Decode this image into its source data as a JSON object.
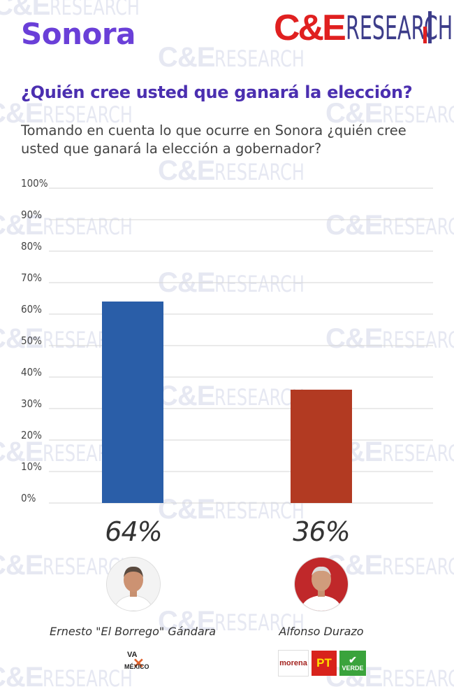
{
  "header": {
    "region": "Sonora",
    "logo_ce": "C&E",
    "logo_research": "RESEARCH",
    "watermark_text": "C&E RESEARCH"
  },
  "question": "¿Quién cree usted que ganará la elección?",
  "subtitle": "Tomando en cuenta lo que ocurre en Sonora ¿quién cree usted que ganará la elección a gobernador?",
  "chart_data": {
    "type": "bar",
    "title": "¿Quién cree usted que ganará la elección?",
    "categories": [
      "Ernesto \"El Borrego\" Gándara",
      "Alfonso Durazo"
    ],
    "values": [
      64,
      36
    ],
    "value_labels": [
      "64%",
      "36%"
    ],
    "colors": [
      "#2a5ea8",
      "#b23a22"
    ],
    "ylim": [
      0,
      100
    ],
    "yticks": [
      0,
      10,
      20,
      30,
      40,
      50,
      60,
      70,
      80,
      90,
      100
    ],
    "ytick_labels": [
      "0%",
      "10%",
      "20%",
      "30%",
      "40%",
      "50%",
      "60%",
      "70%",
      "80%",
      "90%",
      "100%"
    ],
    "grid": true
  },
  "candidates": [
    {
      "name": "Ernesto \"El Borrego\" Gándara",
      "party_logo_text": [
        "VA",
        "MÉXICO"
      ]
    },
    {
      "name": "Alfonso Durazo",
      "party_logo_text": [
        "morena",
        "PT",
        "VERDE"
      ]
    }
  ],
  "colors": {
    "title_purple": "#6a3fd8",
    "question_purple": "#4b2fb0",
    "logo_red": "#e02020",
    "logo_navy": "#3d3d8a"
  },
  "icons": [
    "candidate-photo",
    "va-por-mexico-logo",
    "morena-logo",
    "pt-logo",
    "verde-logo"
  ]
}
